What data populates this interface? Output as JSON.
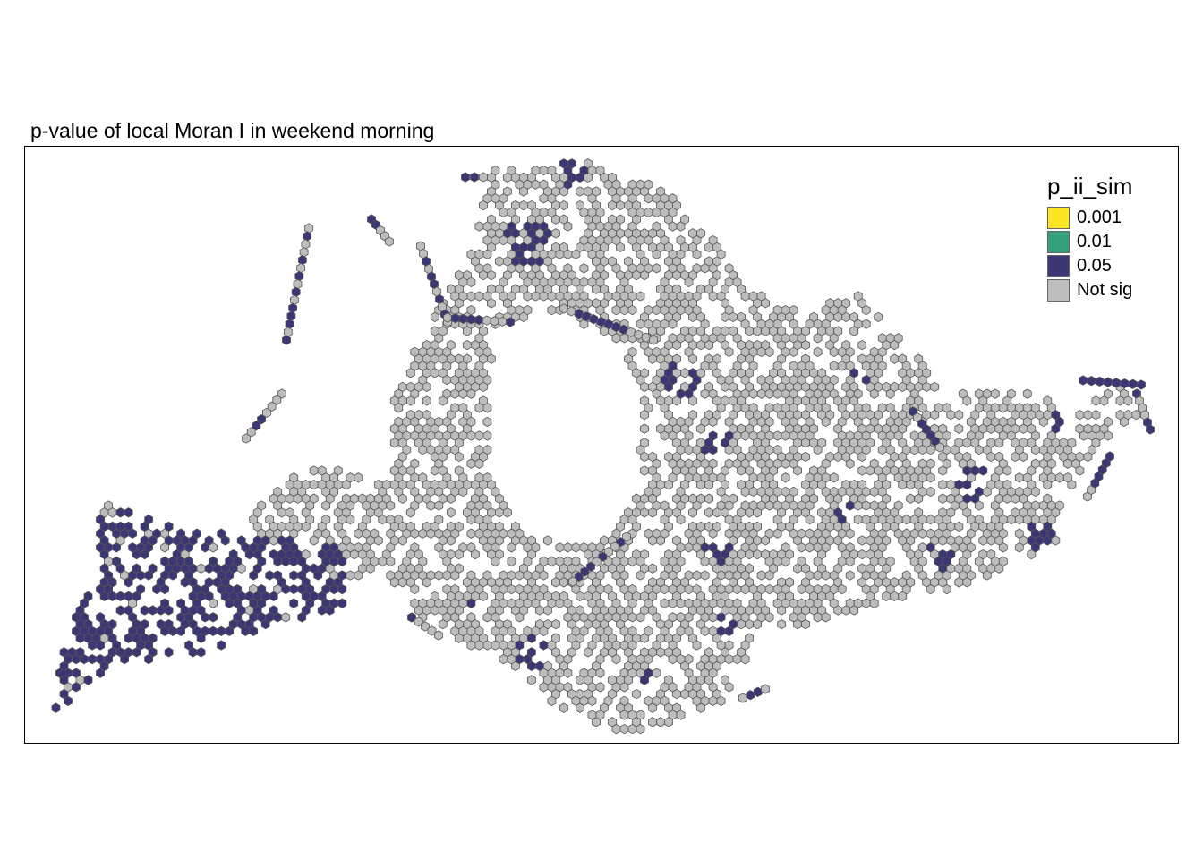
{
  "title": "p-value of local Moran I in weekend morning",
  "legend": {
    "title": "p_ii_sim",
    "items": [
      {
        "label": "0.001",
        "color": "#fde725"
      },
      {
        "label": "0.01",
        "color": "#35a07c"
      },
      {
        "label": "0.05",
        "color": "#3b3775"
      },
      {
        "label": "Not sig",
        "color": "#bdbdbd"
      }
    ]
  }
}
